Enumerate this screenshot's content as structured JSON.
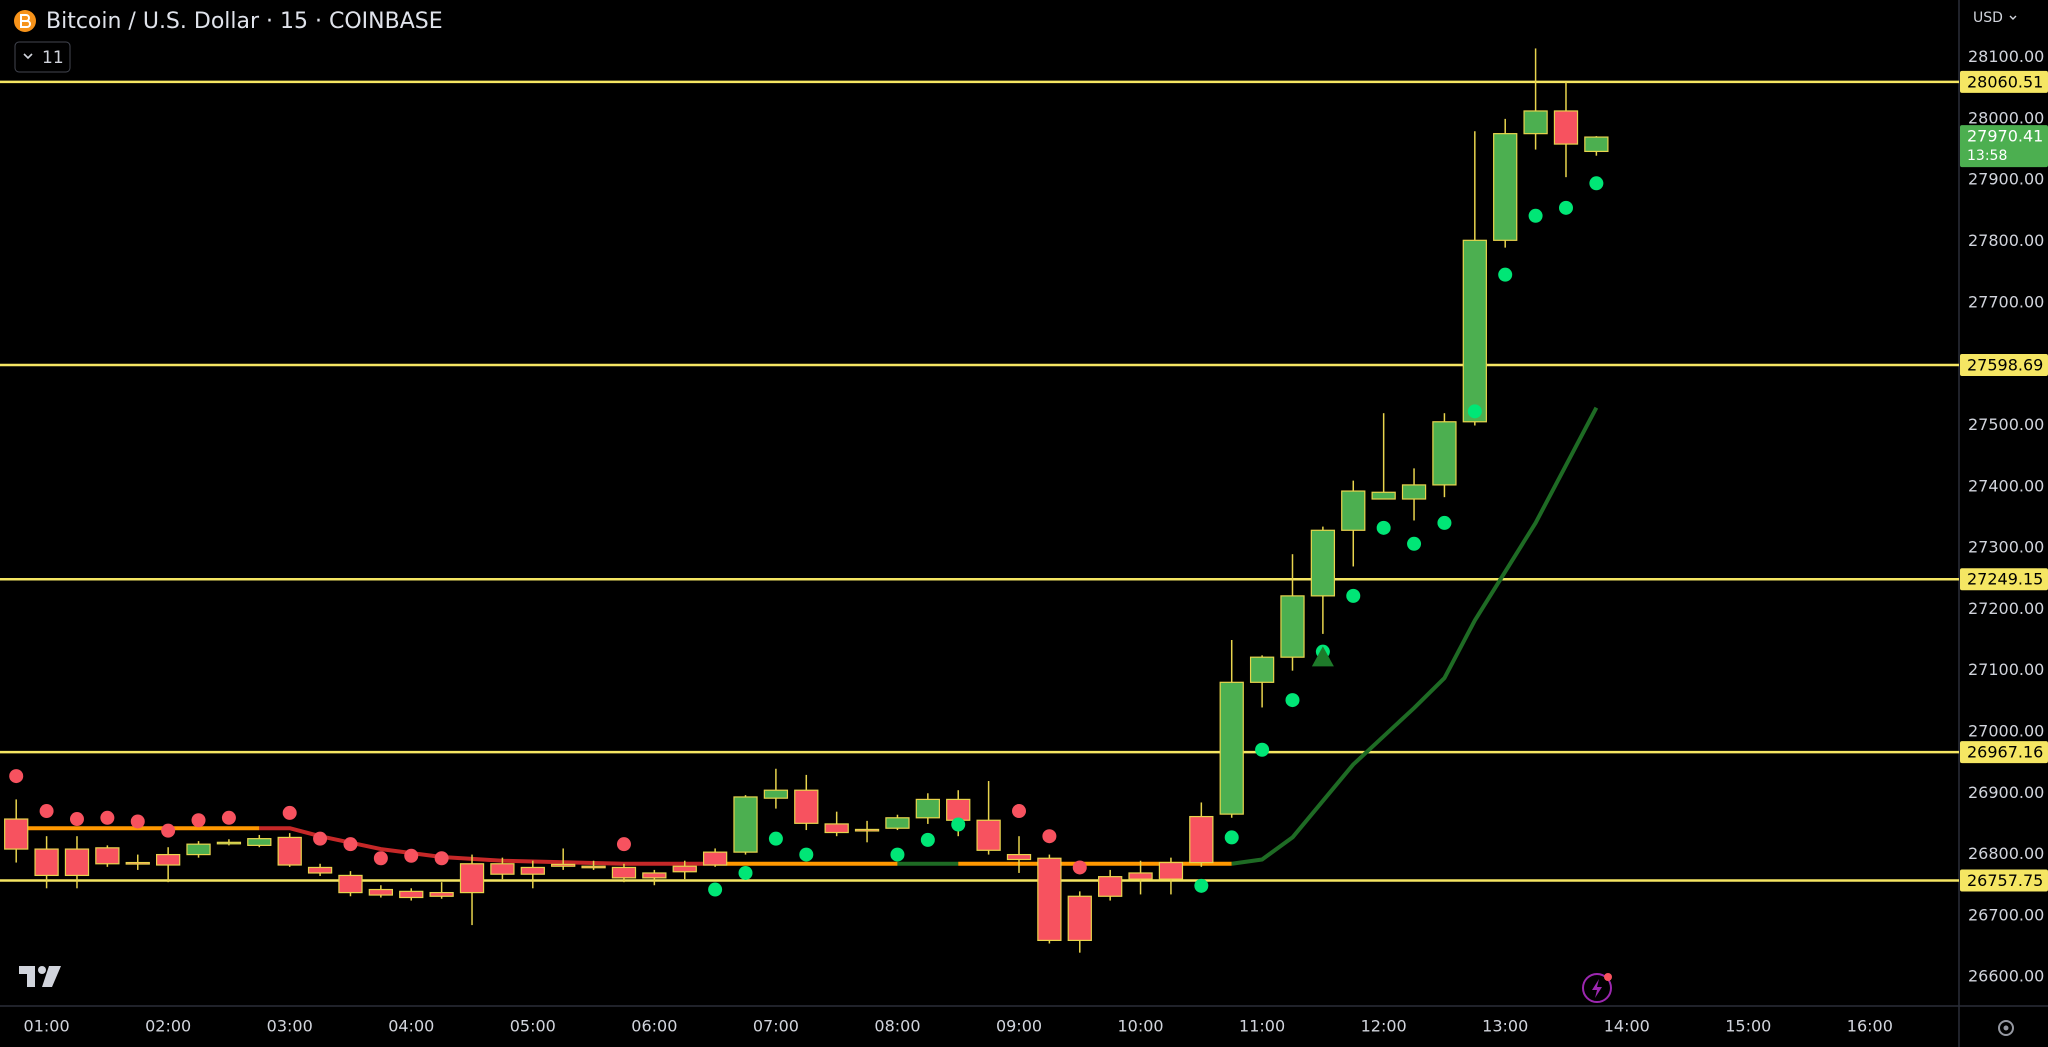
{
  "chart_data": {
    "type": "candlestick",
    "title": "Bitcoin / U.S. Dollar · 15 · COINBASE",
    "indicators_badge": "11",
    "currency": "USD",
    "up_color": "#4caf50",
    "down_color": "#f7525f",
    "wick_color": "#e8d44d",
    "x": [
      "00:45",
      "01:00",
      "01:15",
      "01:30",
      "01:45",
      "02:00",
      "02:15",
      "02:30",
      "02:45",
      "03:00",
      "03:15",
      "03:30",
      "03:45",
      "04:00",
      "04:15",
      "04:30",
      "04:45",
      "05:00",
      "05:15",
      "05:30",
      "05:45",
      "06:00",
      "06:15",
      "06:30",
      "06:45",
      "07:00",
      "07:15",
      "07:30",
      "07:45",
      "08:00",
      "08:15",
      "08:30",
      "08:45",
      "09:00",
      "09:15",
      "09:30",
      "09:45",
      "10:00",
      "10:15",
      "10:30",
      "10:45",
      "11:00",
      "11:15",
      "11:30",
      "11:45",
      "12:00",
      "12:15",
      "12:30",
      "12:45",
      "13:00",
      "13:15",
      "13:30",
      "13:45"
    ],
    "open": [
      26858,
      26809,
      26809,
      26811,
      26787,
      26800,
      26800,
      26818,
      26815,
      26828,
      26779,
      26766,
      26743,
      26740,
      26738,
      26785,
      26785,
      26779,
      26784,
      26781,
      26779,
      26770,
      26781,
      26804,
      26804,
      26892,
      26905,
      26850,
      26841,
      26843,
      26860,
      26890,
      26856,
      26800,
      26794,
      26732,
      26764,
      26770,
      26787,
      26862,
      26866,
      27081,
      27122,
      27222,
      27329,
      27380,
      27380,
      27403,
      27506,
      27802,
      27976,
      28013,
      27947
    ],
    "high": [
      26890,
      26830,
      26830,
      26815,
      26800,
      26812,
      26822,
      26825,
      26832,
      26835,
      26785,
      26773,
      26750,
      26745,
      26755,
      26800,
      26795,
      26790,
      26810,
      26790,
      26785,
      26775,
      26790,
      26810,
      26897,
      26940,
      26930,
      26870,
      26855,
      26865,
      26900,
      26905,
      26920,
      26830,
      26800,
      26740,
      26775,
      26790,
      26795,
      26885,
      27150,
      27125,
      27290,
      27335,
      27410,
      27520,
      27430,
      27520,
      27980,
      28000,
      28115,
      28060,
      27972
    ],
    "low": [
      26787,
      26745,
      26745,
      26780,
      26775,
      26755,
      26795,
      26815,
      26812,
      26780,
      26765,
      26732,
      26730,
      26725,
      26728,
      26685,
      26760,
      26745,
      26775,
      26775,
      26755,
      26750,
      26760,
      26780,
      26800,
      26875,
      26840,
      26830,
      26820,
      26840,
      26850,
      26830,
      26800,
      26770,
      26655,
      26640,
      26725,
      26735,
      26735,
      26780,
      26860,
      27040,
      27100,
      27160,
      27270,
      27380,
      27345,
      27383,
      27500,
      27790,
      27950,
      27905,
      27940
    ],
    "close": [
      26809,
      26766,
      26766,
      26785,
      26785,
      26783,
      26817,
      26820,
      26826,
      26783,
      26770,
      26738,
      26734,
      26730,
      26732,
      26738,
      26768,
      26768,
      26781,
      26780,
      26762,
      26762,
      26772,
      26783,
      26894,
      26905,
      26851,
      26836,
      26840,
      26860,
      26890,
      26856,
      26807,
      26792,
      26660,
      26660,
      26732,
      26760,
      26760,
      26787,
      27081,
      27122,
      27222,
      27329,
      27393,
      27391,
      27403,
      27506,
      27802,
      27976,
      28013,
      27959,
      27970.41
    ],
    "sar_above": {
      "color": "#f7525f",
      "x": [
        "00:45",
        "01:00",
        "01:15",
        "01:30",
        "01:45",
        "02:00",
        "02:15",
        "02:30",
        "03:00",
        "03:15",
        "03:30",
        "03:45",
        "04:00",
        "04:15",
        "05:45",
        "09:00",
        "09:15",
        "09:30"
      ],
      "values": [
        26928,
        26871,
        26858,
        26860,
        26854,
        26839,
        26856,
        26860,
        26868,
        26826,
        26817,
        26794,
        26798,
        26794,
        26817,
        26871,
        26830,
        26779
      ]
    },
    "sar_below": {
      "color": "#00e676",
      "x": [
        "06:30",
        "06:45",
        "07:00",
        "07:15",
        "08:00",
        "08:15",
        "08:30",
        "10:30",
        "10:45",
        "11:00",
        "11:15",
        "11:30",
        "11:45",
        "12:00",
        "12:15",
        "12:30",
        "12:45",
        "13:00",
        "13:15",
        "13:30",
        "13:45"
      ],
      "values": [
        26743,
        26770,
        26826,
        26800,
        26800,
        26824,
        26849,
        26749,
        26828,
        26971,
        27052,
        27131,
        27222,
        27333,
        27307,
        27341,
        27523,
        27746,
        27842,
        27855,
        27895
      ]
    },
    "indicator_lines": [
      {
        "color": "#ff9800",
        "x": [
          "00:45",
          "02:45"
        ],
        "values": [
          26843,
          26843
        ]
      },
      {
        "color": "#c62828",
        "x": [
          "02:45",
          "03:00",
          "03:15",
          "03:45",
          "04:15",
          "04:45",
          "05:45",
          "06:30"
        ],
        "values": [
          26843,
          26843,
          26830,
          26809,
          26796,
          26790,
          26785,
          26785
        ]
      },
      {
        "color": "#ff9800",
        "x": [
          "06:30",
          "08:00"
        ],
        "values": [
          26785,
          26785
        ]
      },
      {
        "color": "#1e6b24",
        "x": [
          "08:00",
          "08:30"
        ],
        "values": [
          26785,
          26785
        ]
      },
      {
        "color": "#ff9800",
        "x": [
          "08:30",
          "10:45"
        ],
        "values": [
          26785,
          26785
        ]
      },
      {
        "color": "#1e6b24",
        "x": [
          "10:45",
          "11:00",
          "11:15",
          "11:45",
          "12:15",
          "12:30",
          "12:45",
          "13:15",
          "13:45"
        ],
        "values": [
          26785,
          26792,
          26828,
          26947,
          27039,
          27088,
          27182,
          27341,
          27529
        ]
      }
    ],
    "signal_markers": [
      {
        "x": "11:30",
        "value": 27120,
        "color": "#1e7a2a"
      }
    ],
    "levels": [
      28060.51,
      27598.69,
      27249.15,
      26967.16,
      26757.75
    ],
    "level_color": "#f5e663",
    "last_price": {
      "value": 27970.41,
      "countdown": "13:58"
    },
    "xlim": [
      "00:37",
      "16:44"
    ],
    "ylim": [
      26553,
      28194
    ],
    "yticks": [
      {
        "value": 26600,
        "label": "26600.00"
      },
      {
        "value": 26700,
        "label": "26700.00"
      },
      {
        "value": 26800,
        "label": "26800.00"
      },
      {
        "value": 26900,
        "label": "26900.00"
      },
      {
        "value": 27000,
        "label": "27000.00"
      },
      {
        "value": 27100,
        "label": "27100.00"
      },
      {
        "value": 27200,
        "label": "27200.00"
      },
      {
        "value": 27300,
        "label": "27300.00"
      },
      {
        "value": 27400,
        "label": "27400.00"
      },
      {
        "value": 27500,
        "label": "27500.00"
      },
      {
        "value": 27600,
        "label": "27600.00"
      },
      {
        "value": 27700,
        "label": "27700.00"
      },
      {
        "value": 27800,
        "label": "27800.00"
      },
      {
        "value": 27900,
        "label": "27900.00"
      },
      {
        "value": 28000,
        "label": "28000.00"
      },
      {
        "value": 28100,
        "label": "28100.00"
      }
    ],
    "xticks": [
      "01:00",
      "02:00",
      "03:00",
      "04:00",
      "05:00",
      "06:00",
      "07:00",
      "08:00",
      "09:00",
      "10:00",
      "11:00",
      "12:00",
      "13:00",
      "14:00",
      "15:00",
      "16:00"
    ]
  }
}
